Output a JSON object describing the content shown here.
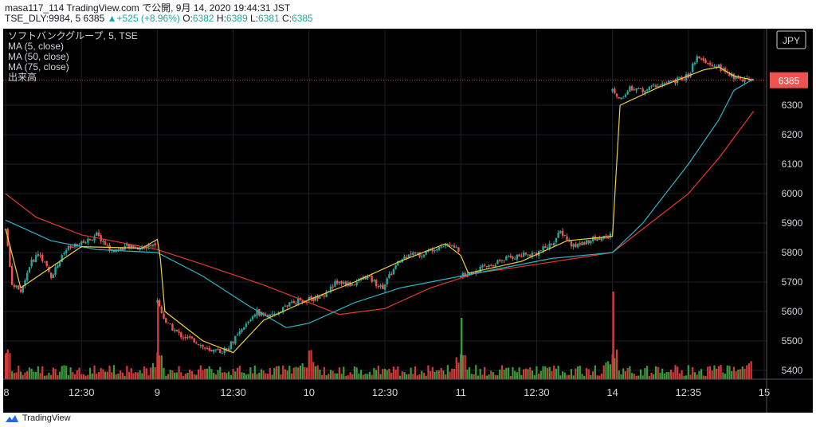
{
  "header": {
    "line1": "masa117_114 TradingView.com で公開, 9月 14, 2020 19:44:31 JST",
    "symbol": "TSE_DLY:9984, 5",
    "last": "6385",
    "change_arrow": "▲",
    "change": "+525 (+8.96%)",
    "o_label": "O:",
    "o_value": "6382",
    "h_label": "H:",
    "h_value": "6389",
    "l_label": "L:",
    "l_value": "6381",
    "c_label": "C:",
    "c_value": "6385"
  },
  "legend": {
    "title": "ソフトバンクグループ, 5, TSE",
    "ma5": "MA (5, close)",
    "ma50": "MA (50, close)",
    "ma75": "MA (75, close)",
    "volume": "出来高"
  },
  "footer": {
    "brand": "TradingView"
  },
  "colors": {
    "up": "#26a69a",
    "down": "#ef5350",
    "ma5": "#f0d13f",
    "ma50": "#2bb6c9",
    "ma75": "#e33b2e",
    "vol_up": "#3d9a3d",
    "vol_down": "#d23b3b",
    "grid": "#1e2128",
    "text": "#d1d4dc"
  },
  "chart_data": {
    "type": "candlestick",
    "currency": "JPY",
    "last_price": 6385,
    "price_axis": {
      "min": 5370,
      "max": 6560,
      "ticks": [
        5400,
        5500,
        5600,
        5700,
        5800,
        5900,
        6000,
        6100,
        6200,
        6300
      ]
    },
    "time_axis": {
      "labels": [
        "8",
        "12:30",
        "9",
        "12:30",
        "10",
        "12:30",
        "11",
        "12:30",
        "14",
        "12:35",
        "15"
      ],
      "positions": [
        0,
        0.5,
        1,
        1.5,
        2,
        2.5,
        3,
        3.5,
        4,
        4.5,
        5
      ],
      "range": [
        0,
        5
      ]
    },
    "grid": true,
    "sessions": [
      {
        "date": "9/8",
        "path": [
          [
            0,
            5880
          ],
          [
            0.04,
            5700
          ],
          [
            0.1,
            5660
          ],
          [
            0.16,
            5760
          ],
          [
            0.22,
            5800
          ],
          [
            0.3,
            5720
          ],
          [
            0.4,
            5810
          ],
          [
            0.5,
            5830
          ],
          [
            0.6,
            5860
          ],
          [
            0.7,
            5805
          ],
          [
            0.8,
            5820
          ],
          [
            0.9,
            5815
          ],
          [
            1.0,
            5835
          ]
        ]
      },
      {
        "date": "9/9",
        "path": [
          [
            0,
            5630
          ],
          [
            0.06,
            5560
          ],
          [
            0.15,
            5520
          ],
          [
            0.25,
            5500
          ],
          [
            0.35,
            5460
          ],
          [
            0.45,
            5470
          ],
          [
            0.55,
            5530
          ],
          [
            0.65,
            5600
          ],
          [
            0.75,
            5580
          ],
          [
            0.85,
            5620
          ],
          [
            0.95,
            5640
          ],
          [
            1.0,
            5630
          ]
        ]
      },
      {
        "date": "9/10",
        "path": [
          [
            0,
            5640
          ],
          [
            0.08,
            5650
          ],
          [
            0.18,
            5700
          ],
          [
            0.28,
            5690
          ],
          [
            0.38,
            5720
          ],
          [
            0.48,
            5680
          ],
          [
            0.58,
            5760
          ],
          [
            0.66,
            5800
          ],
          [
            0.74,
            5790
          ],
          [
            0.84,
            5820
          ],
          [
            0.92,
            5830
          ],
          [
            1.0,
            5800
          ]
        ]
      },
      {
        "date": "9/11",
        "path": [
          [
            0,
            5720
          ],
          [
            0.1,
            5740
          ],
          [
            0.2,
            5760
          ],
          [
            0.3,
            5780
          ],
          [
            0.4,
            5790
          ],
          [
            0.5,
            5800
          ],
          [
            0.6,
            5830
          ],
          [
            0.66,
            5870
          ],
          [
            0.74,
            5820
          ],
          [
            0.84,
            5840
          ],
          [
            0.92,
            5850
          ],
          [
            1.0,
            5860
          ]
        ]
      },
      {
        "date": "9/14",
        "path": [
          [
            0,
            6350
          ],
          [
            0.05,
            6320
          ],
          [
            0.12,
            6360
          ],
          [
            0.2,
            6350
          ],
          [
            0.3,
            6370
          ],
          [
            0.4,
            6380
          ],
          [
            0.5,
            6400
          ],
          [
            0.55,
            6460
          ],
          [
            0.62,
            6440
          ],
          [
            0.7,
            6430
          ],
          [
            0.78,
            6400
          ],
          [
            0.85,
            6390
          ],
          [
            0.93,
            6385
          ]
        ]
      }
    ],
    "ma5": [
      [
        0,
        5880
      ],
      [
        0.1,
        5680
      ],
      [
        0.3,
        5750
      ],
      [
        0.5,
        5820
      ],
      [
        0.9,
        5815
      ],
      [
        1.0,
        5845
      ],
      [
        1.02,
        5780
      ],
      [
        1.05,
        5600
      ],
      [
        1.3,
        5500
      ],
      [
        1.5,
        5460
      ],
      [
        1.7,
        5570
      ],
      [
        2.0,
        5640
      ],
      [
        2.3,
        5700
      ],
      [
        2.6,
        5770
      ],
      [
        2.9,
        5830
      ],
      [
        3.0,
        5790
      ],
      [
        3.05,
        5730
      ],
      [
        3.4,
        5770
      ],
      [
        3.7,
        5840
      ],
      [
        4.0,
        5855
      ],
      [
        4.05,
        6300
      ],
      [
        4.3,
        6360
      ],
      [
        4.6,
        6420
      ],
      [
        4.7,
        6430
      ],
      [
        4.8,
        6400
      ],
      [
        4.93,
        6385
      ]
    ],
    "ma50": [
      [
        0,
        5910
      ],
      [
        0.3,
        5840
      ],
      [
        0.6,
        5810
      ],
      [
        1.0,
        5800
      ],
      [
        1.3,
        5720
      ],
      [
        1.6,
        5620
      ],
      [
        1.85,
        5545
      ],
      [
        2.0,
        5560
      ],
      [
        2.3,
        5630
      ],
      [
        2.6,
        5680
      ],
      [
        3.0,
        5720
      ],
      [
        3.3,
        5750
      ],
      [
        3.6,
        5780
      ],
      [
        4.0,
        5800
      ],
      [
        4.2,
        5900
      ],
      [
        4.5,
        6100
      ],
      [
        4.7,
        6250
      ],
      [
        4.8,
        6350
      ],
      [
        4.93,
        6390
      ]
    ],
    "ma75": [
      [
        0,
        6000
      ],
      [
        0.2,
        5920
      ],
      [
        0.5,
        5860
      ],
      [
        1.0,
        5810
      ],
      [
        1.3,
        5760
      ],
      [
        1.7,
        5690
      ],
      [
        2.2,
        5590
      ],
      [
        2.5,
        5610
      ],
      [
        2.8,
        5680
      ],
      [
        3.1,
        5730
      ],
      [
        3.5,
        5760
      ],
      [
        4.0,
        5800
      ],
      [
        4.2,
        5880
      ],
      [
        4.5,
        6000
      ],
      [
        4.7,
        6120
      ],
      [
        4.93,
        6280
      ]
    ],
    "volume_spikes": [
      [
        0,
        0.3
      ],
      [
        1.0,
        0.9
      ],
      [
        3.0,
        0.7
      ],
      [
        4.0,
        1.0
      ]
    ]
  }
}
